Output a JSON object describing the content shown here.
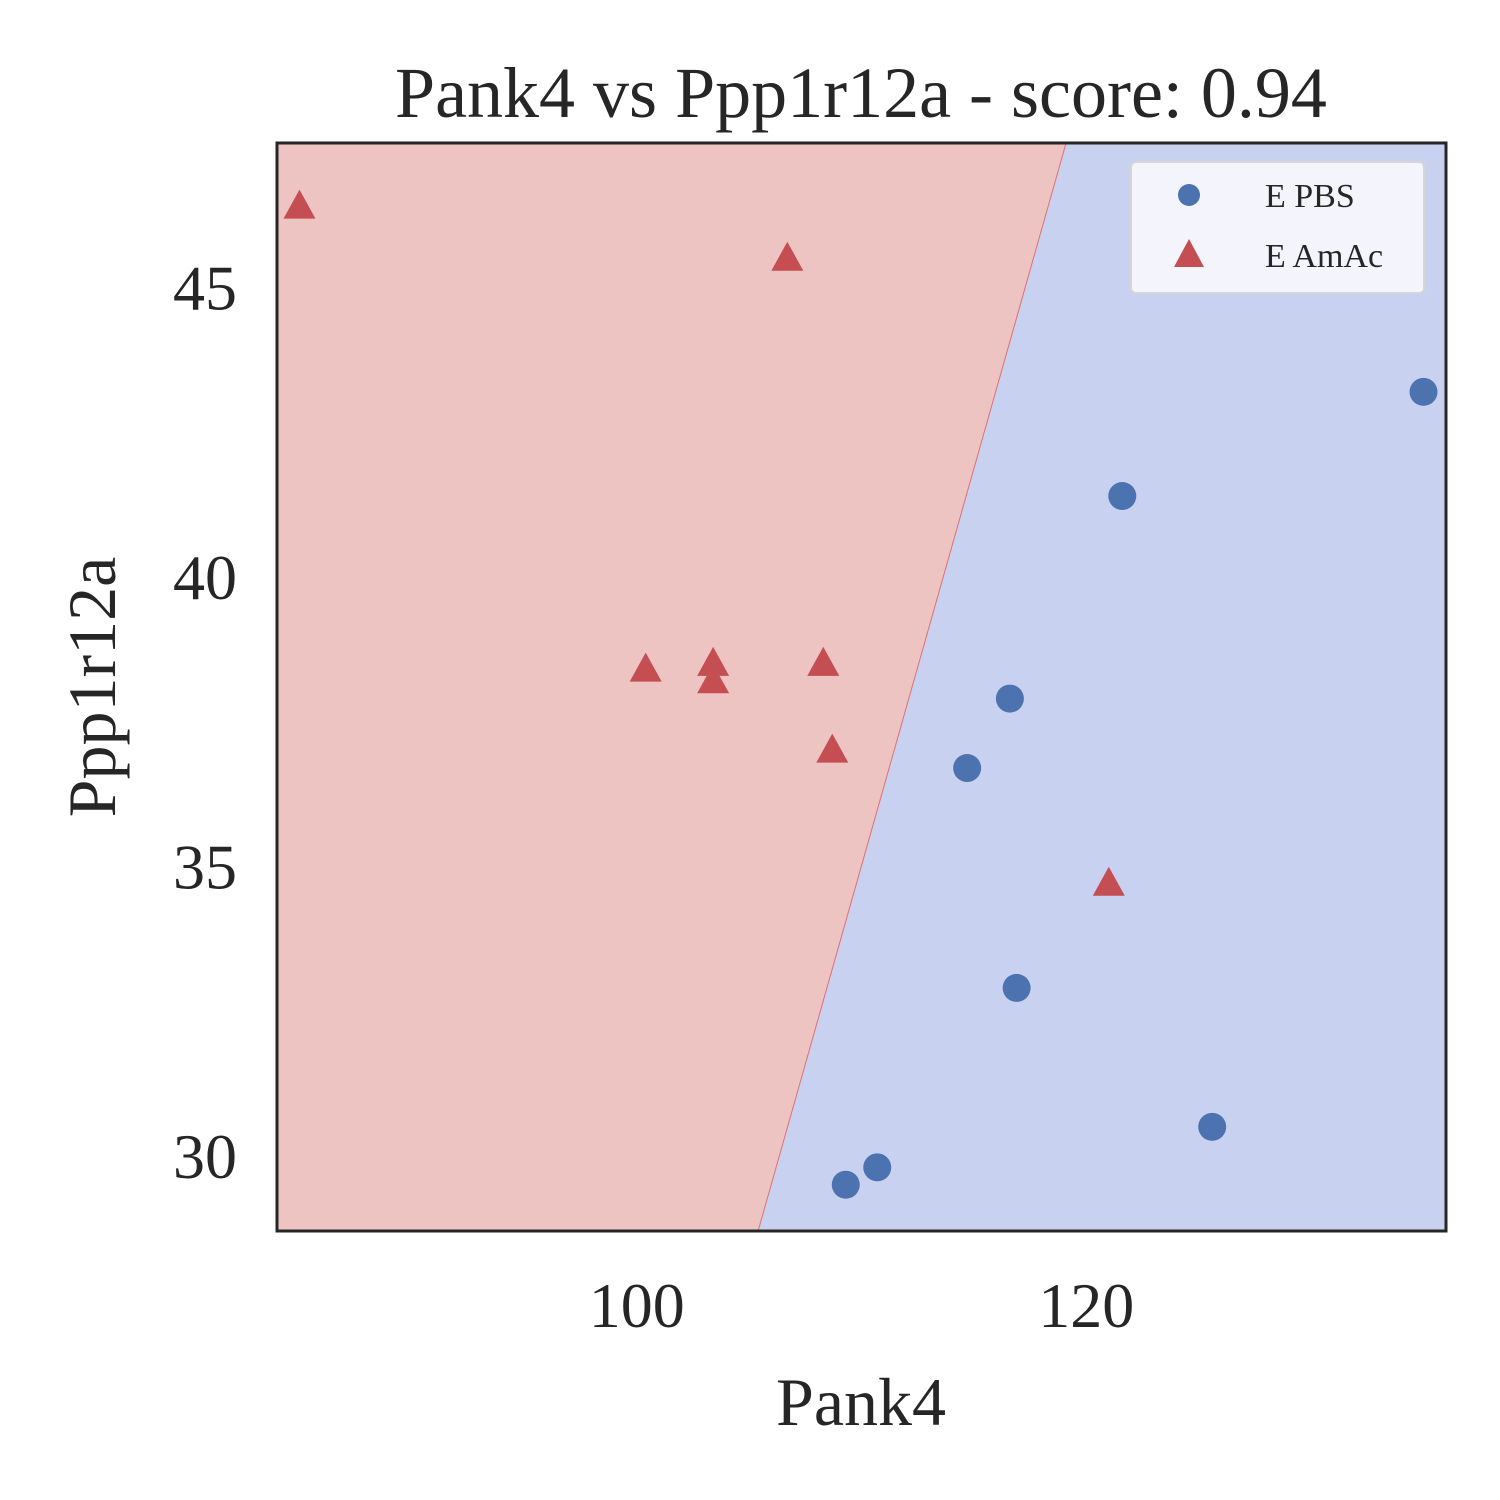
{
  "chart_data": {
    "type": "scatter",
    "title": "Pank4 vs Ppp1r12a - score: 0.94",
    "xlabel": "Pank4",
    "ylabel": "Ppp1r12a",
    "xlim": [
      84,
      136
    ],
    "ylim": [
      28.7,
      47.5
    ],
    "x_ticks": [
      100,
      120
    ],
    "y_ticks": [
      30,
      35,
      40,
      45
    ],
    "grid": false,
    "legend_position": "top-right",
    "decision_boundary": {
      "points": [
        [
          105.4,
          28.7
        ],
        [
          119.1,
          47.5
        ]
      ],
      "left_region_color": "#eec4c3",
      "right_region_color": "#c9d1f1",
      "line_color": "#e07070"
    },
    "series": [
      {
        "name": "E PBS",
        "marker": "circle",
        "color": "#4c72b0",
        "points": [
          [
            135.0,
            43.2
          ],
          [
            121.6,
            41.4
          ],
          [
            116.6,
            37.9
          ],
          [
            114.7,
            36.7
          ],
          [
            116.9,
            32.9
          ],
          [
            125.6,
            30.5
          ],
          [
            110.7,
            29.8
          ],
          [
            109.3,
            29.5
          ]
        ]
      },
      {
        "name": "E AmAc",
        "marker": "triangle",
        "color": "#c44e52",
        "points": [
          [
            85.0,
            46.4
          ],
          [
            106.7,
            45.5
          ],
          [
            100.4,
            38.4
          ],
          [
            103.4,
            38.5
          ],
          [
            103.4,
            38.2
          ],
          [
            108.3,
            38.5
          ],
          [
            108.7,
            37.0
          ],
          [
            121.0,
            34.7
          ]
        ]
      }
    ]
  }
}
